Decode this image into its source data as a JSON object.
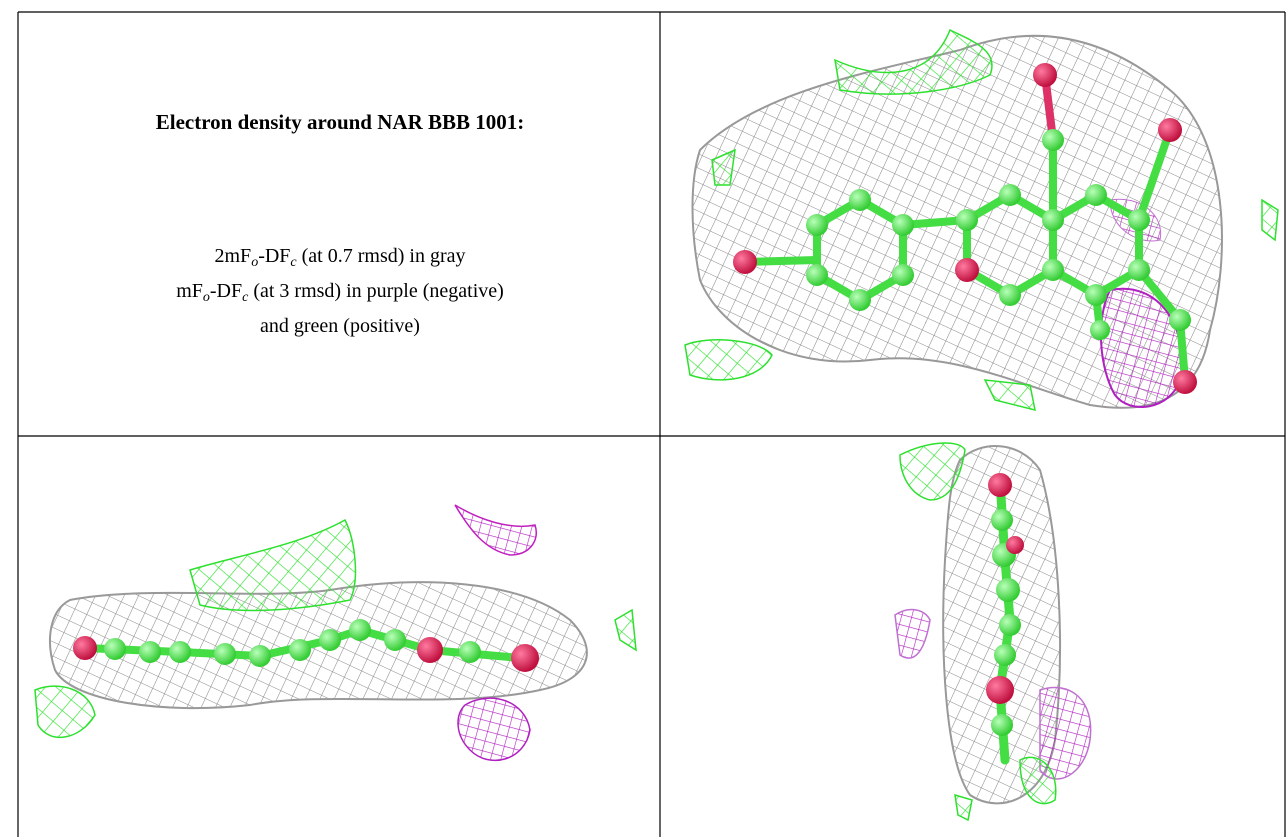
{
  "table": {
    "title": "Electron density around NAR BBB 1001:",
    "caption": [
      [
        "2mF",
        "o",
        "-DF",
        "c",
        " (at 0.7 rmsd) in gray"
      ],
      [
        "mF",
        "o",
        "-DF",
        "c",
        " (at 3 rmsd) in purple (negative)"
      ],
      [
        "and green (positive)"
      ]
    ]
  }
}
